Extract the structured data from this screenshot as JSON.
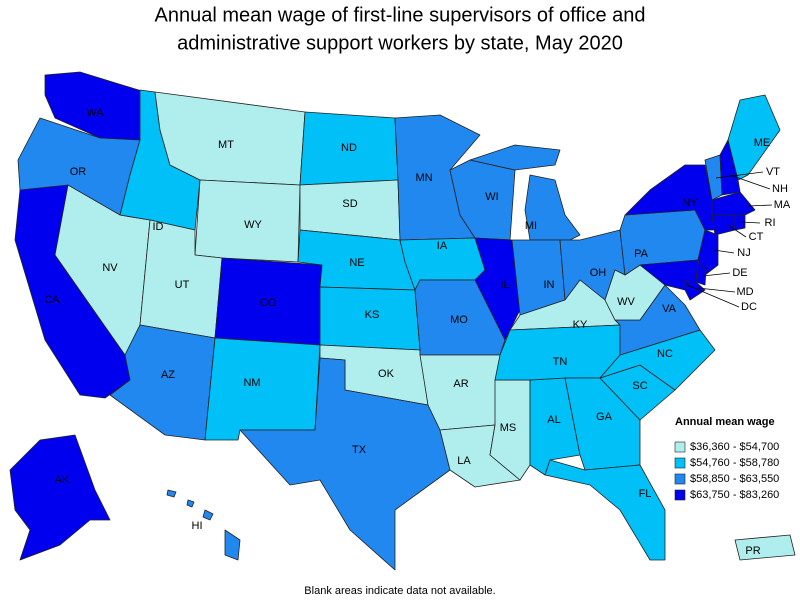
{
  "title": [
    "Annual mean wage of first-line supervisors of office and",
    "administrative support workers by state, May 2020"
  ],
  "legend": {
    "title": "Annual mean wage",
    "items": [
      {
        "label": "$36,360 - $54,700",
        "color": "#b0eeee"
      },
      {
        "label": "$54,760 - $58,780",
        "color": "#00c0f8"
      },
      {
        "label": "$58,850 - $63,550",
        "color": "#2088ee"
      },
      {
        "label": "$63,750 - $83,260",
        "color": "#0000ee"
      }
    ]
  },
  "states": [
    {
      "label": "WA",
      "class": 3
    },
    {
      "label": "OR",
      "class": 2
    },
    {
      "label": "CA",
      "class": 3
    },
    {
      "label": "NV",
      "class": 0
    },
    {
      "label": "ID",
      "class": 1
    },
    {
      "label": "MT",
      "class": 0
    },
    {
      "label": "WY",
      "class": 0
    },
    {
      "label": "UT",
      "class": 0
    },
    {
      "label": "AZ",
      "class": 2
    },
    {
      "label": "CO",
      "class": 3
    },
    {
      "label": "NM",
      "class": 1
    },
    {
      "label": "ND",
      "class": 1
    },
    {
      "label": "SD",
      "class": 0
    },
    {
      "label": "NE",
      "class": 1
    },
    {
      "label": "KS",
      "class": 1
    },
    {
      "label": "OK",
      "class": 0
    },
    {
      "label": "TX",
      "class": 2
    },
    {
      "label": "MN",
      "class": 2
    },
    {
      "label": "IA",
      "class": 1
    },
    {
      "label": "MO",
      "class": 2
    },
    {
      "label": "AR",
      "class": 0
    },
    {
      "label": "LA",
      "class": 0
    },
    {
      "label": "MS",
      "class": 0
    },
    {
      "label": "AL",
      "class": 1
    },
    {
      "label": "WI",
      "class": 2
    },
    {
      "label": "IL",
      "class": 3
    },
    {
      "label": "MI",
      "class": 2
    },
    {
      "label": "IN",
      "class": 2
    },
    {
      "label": "OH",
      "class": 2
    },
    {
      "label": "KY",
      "class": 0
    },
    {
      "label": "TN",
      "class": 1
    },
    {
      "label": "GA",
      "class": 1
    },
    {
      "label": "FL",
      "class": 1
    },
    {
      "label": "SC",
      "class": 1
    },
    {
      "label": "NC",
      "class": 1
    },
    {
      "label": "VA",
      "class": 2
    },
    {
      "label": "WV",
      "class": 0
    },
    {
      "label": "PA",
      "class": 2
    },
    {
      "label": "NY",
      "class": 3
    },
    {
      "label": "VT",
      "class": 2
    },
    {
      "label": "NH",
      "class": 3
    },
    {
      "label": "ME",
      "class": 1
    },
    {
      "label": "MA",
      "class": 3
    },
    {
      "label": "RI",
      "class": 3
    },
    {
      "label": "CT",
      "class": 3
    },
    {
      "label": "NJ",
      "class": 3
    },
    {
      "label": "DE",
      "class": 3
    },
    {
      "label": "MD",
      "class": 3
    },
    {
      "label": "DC",
      "class": 3
    },
    {
      "label": "AK",
      "class": 3
    },
    {
      "label": "HI",
      "class": 2
    },
    {
      "label": "PR",
      "class": 0
    }
  ],
  "footnote": "Blank areas indicate data not available."
}
